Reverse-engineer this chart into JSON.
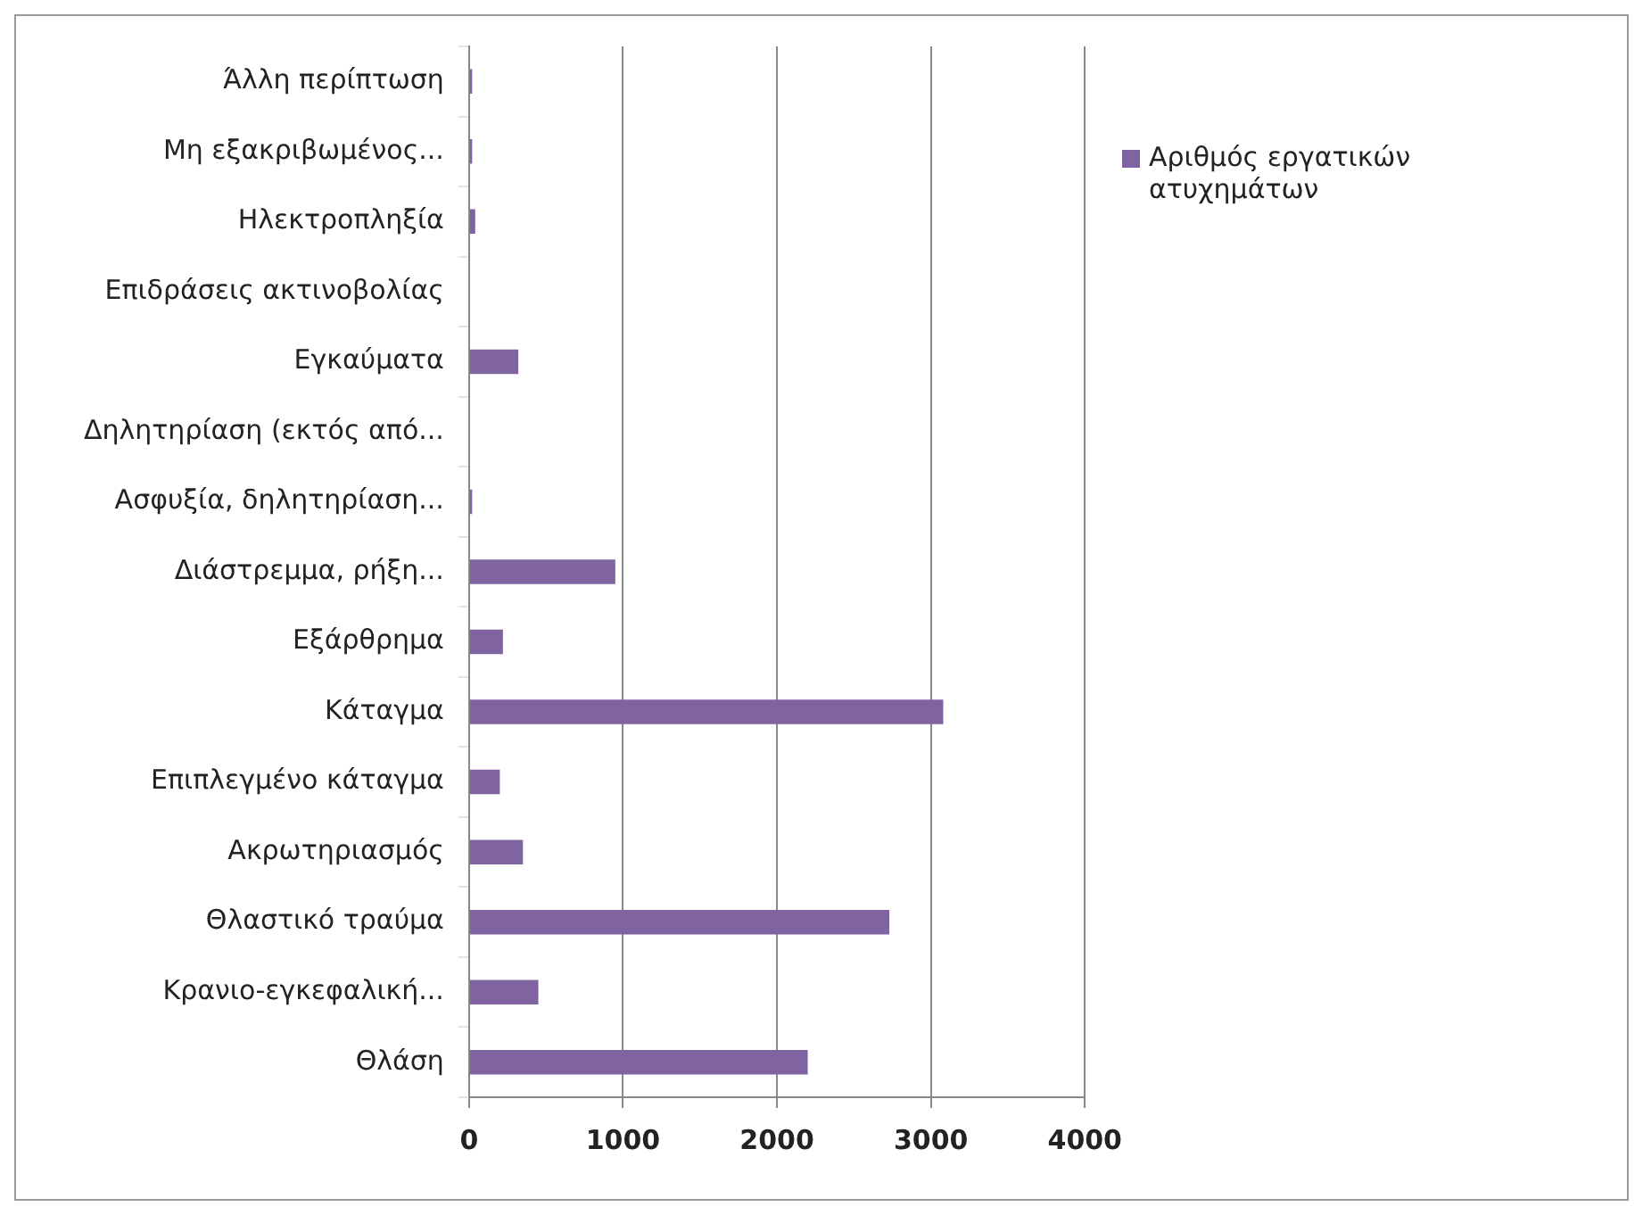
{
  "chart_data": {
    "type": "bar",
    "orientation": "horizontal",
    "categories": [
      "Άλλη περίπτωση",
      "Μη εξακριβωμένος...",
      "Ηλεκτροπληξία",
      "Επιδράσεις ακτινοβολίας",
      "Εγκαύματα",
      "Δηλητηρίαση (εκτός από...",
      "Ασφυξία, δηλητηρίαση...",
      "Διάστρεμμα, ρήξη...",
      "Εξάρθρημα",
      "Κάταγμα",
      "Επιπλεγμένο κάταγμα",
      "Ακρωτηριασμός",
      "Θλαστικό τραύμα",
      "Κρανιο-εγκεφαλική...",
      "Θλάση"
    ],
    "series": [
      {
        "name": "Αριθμός εργατικών ατυχημάτων",
        "color": "#8064a2",
        "values": [
          20,
          20,
          40,
          0,
          320,
          0,
          20,
          950,
          220,
          3080,
          200,
          350,
          2730,
          450,
          2200
        ]
      }
    ],
    "xlim": [
      0,
      4000
    ],
    "xticks": [
      0,
      1000,
      2000,
      3000,
      4000
    ],
    "grid": "x",
    "legend": "right"
  }
}
